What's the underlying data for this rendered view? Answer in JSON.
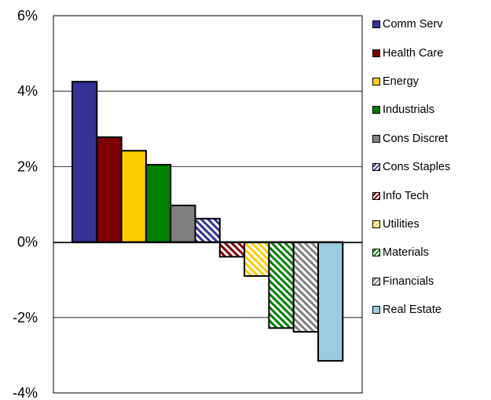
{
  "chart_data": {
    "type": "bar",
    "categories": [
      "Comm Serv",
      "Health Care",
      "Energy",
      "Industrials",
      "Cons Discret",
      "Cons Staples",
      "Info Tech",
      "Utilities",
      "Materials",
      "Financials",
      "Real Estate"
    ],
    "values": [
      4.25,
      2.78,
      2.42,
      2.05,
      0.97,
      0.62,
      -0.39,
      -0.9,
      -2.28,
      -2.38,
      -3.15
    ],
    "colors": [
      "#333399",
      "#800000",
      "#ffcc00",
      "#008000",
      "#808080",
      "#333399",
      "#800000",
      "#ffcc00",
      "#008000",
      "#808080",
      "#99ccdd"
    ],
    "hatched": [
      false,
      false,
      false,
      false,
      false,
      true,
      true,
      true,
      true,
      true,
      false
    ],
    "ylim": [
      -4,
      6
    ],
    "yticks": [
      "6%",
      "4%",
      "2%",
      "0%",
      "-2%",
      "-4%"
    ],
    "grid": true,
    "legend_position": "right",
    "title": "",
    "xlabel": "",
    "ylabel": ""
  }
}
